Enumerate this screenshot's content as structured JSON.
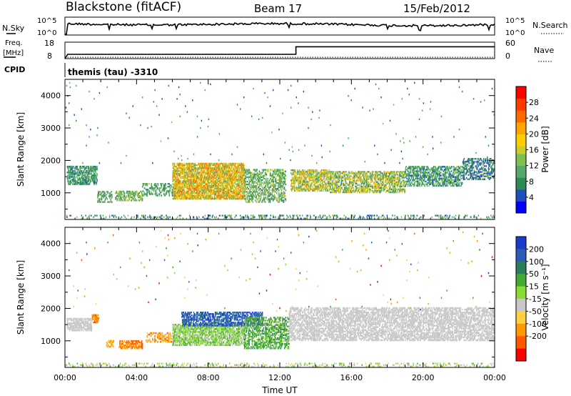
{
  "header": {
    "station": "Blackstone (fitACF)",
    "beam": "Beam 17",
    "date": "15/Feb/2012"
  },
  "top_panels": {
    "nsky_label": "N.Sky",
    "nsky_ticks": [
      "10^5",
      "10^0"
    ],
    "nsearch_label": "N.Search",
    "nsearch_ticks": [
      "10^5",
      "10^0"
    ],
    "freq_label_1": "Freq.",
    "freq_label_2": "[MHz]",
    "freq_ticks": [
      "18",
      "8"
    ],
    "nave_label": "Nave",
    "nave_ticks": [
      "60",
      "0"
    ],
    "cpid_label": "CPID",
    "cpid_text": "themis (tau) -3310",
    "freq_series": {
      "x_hours": [
        0,
        0.15,
        12.9,
        12.9,
        24
      ],
      "mhz": [
        8,
        10.6,
        10.6,
        15.2,
        15.2
      ]
    },
    "nave_series": {
      "x_hours": [
        0,
        24
      ],
      "count": [
        5,
        5
      ]
    }
  },
  "chart_data": [
    {
      "type": "heatmap",
      "name": "power",
      "ylabel": "Slant Range [km]",
      "yticks": [
        "4000",
        "3000",
        "2000",
        "1000"
      ],
      "ytick_values": [
        4000,
        3000,
        2000,
        1000
      ],
      "ylim": [
        180,
        4500
      ],
      "xlim": [
        0,
        24
      ],
      "colorbar_label": "Power [dB]",
      "colorbar_ticks": [
        "28",
        "24",
        "20",
        "16",
        "12",
        "8",
        "4"
      ],
      "colorbar_range": [
        0,
        32
      ],
      "colorbar_colors": [
        "#0000ff",
        "#1f4fbf",
        "#2e8b57",
        "#56a86b",
        "#7fbf4f",
        "#c8cc2e",
        "#ffcc00",
        "#ffa500",
        "#ff6a00",
        "#ff3b00",
        "#ff0000"
      ],
      "scatter_regions": [
        {
          "x": [
            0.1,
            1.8
          ],
          "y": [
            1250,
            1800
          ],
          "level": [
            5,
            12
          ],
          "density": 0.55
        },
        {
          "x": [
            1.8,
            2.6
          ],
          "y": [
            700,
            1050
          ],
          "level": [
            6,
            14
          ],
          "density": 0.4
        },
        {
          "x": [
            2.8,
            4.3
          ],
          "y": [
            750,
            1050
          ],
          "level": [
            7,
            16
          ],
          "density": 0.5
        },
        {
          "x": [
            4.3,
            6.0
          ],
          "y": [
            900,
            1300
          ],
          "level": [
            5,
            13
          ],
          "density": 0.35
        },
        {
          "x": [
            6.0,
            10.0
          ],
          "y": [
            800,
            1900
          ],
          "level": [
            10,
            26
          ],
          "density": 0.65
        },
        {
          "x": [
            10.0,
            12.3
          ],
          "y": [
            700,
            1700
          ],
          "level": [
            6,
            16
          ],
          "density": 0.4
        },
        {
          "x": [
            12.6,
            14.8
          ],
          "y": [
            1050,
            1700
          ],
          "level": [
            8,
            24
          ],
          "density": 0.55
        },
        {
          "x": [
            14.8,
            19.0
          ],
          "y": [
            1000,
            1650
          ],
          "level": [
            6,
            22
          ],
          "density": 0.5
        },
        {
          "x": [
            19.0,
            22.2
          ],
          "y": [
            1200,
            1800
          ],
          "level": [
            4,
            14
          ],
          "density": 0.45
        },
        {
          "x": [
            22.2,
            24.0
          ],
          "y": [
            1400,
            2050
          ],
          "level": [
            3,
            10
          ],
          "density": 0.35
        },
        {
          "x": [
            0.0,
            24.0
          ],
          "y": [
            190,
            300
          ],
          "level": [
            3,
            14
          ],
          "density": 0.18
        },
        {
          "x": [
            0.0,
            24.0
          ],
          "y": [
            1900,
            4400
          ],
          "level": [
            3,
            12
          ],
          "density": 0.004
        }
      ]
    },
    {
      "type": "heatmap",
      "name": "velocity",
      "ylabel": "Slant Range [km]",
      "yticks": [
        "4000",
        "3000",
        "2000",
        "1000"
      ],
      "ytick_values": [
        4000,
        3000,
        2000,
        1000
      ],
      "ylim": [
        180,
        4500
      ],
      "xlim": [
        0,
        24
      ],
      "xticks": [
        "00:00",
        "04:00",
        "08:00",
        "12:00",
        "16:00",
        "20:00",
        "00:00"
      ],
      "xtick_values": [
        0,
        4,
        8,
        12,
        16,
        20,
        24
      ],
      "xlabel": "Time UT",
      "colorbar_label": "Velocity [m s⁻¹]",
      "colorbar_ticks": [
        "200",
        "100",
        "50",
        "15",
        "-15",
        "-50",
        "-100",
        "-200"
      ],
      "colorbar_bins": [
        "#1a3cc8",
        "#2b5cb8",
        "#2e7d5a",
        "#44aa33",
        "#88dd33",
        "#c8c8c8",
        "#ffd040",
        "#ff9a00",
        "#ff5a00",
        "#ff0000"
      ],
      "scatter_regions": [
        {
          "x": [
            0.1,
            1.5
          ],
          "y": [
            1300,
            1700
          ],
          "level": [
            5,
            5
          ],
          "density": 0.6
        },
        {
          "x": [
            1.5,
            1.9
          ],
          "y": [
            1550,
            1800
          ],
          "level": [
            7,
            8
          ],
          "density": 0.6
        },
        {
          "x": [
            2.3,
            2.7
          ],
          "y": [
            800,
            1000
          ],
          "level": [
            6,
            7
          ],
          "density": 0.5
        },
        {
          "x": [
            3.0,
            4.3
          ],
          "y": [
            750,
            1000
          ],
          "level": [
            7,
            8
          ],
          "density": 0.5
        },
        {
          "x": [
            4.5,
            6.0
          ],
          "y": [
            950,
            1250
          ],
          "level": [
            6,
            8
          ],
          "density": 0.35
        },
        {
          "x": [
            6.0,
            10.0
          ],
          "y": [
            850,
            1500
          ],
          "level": [
            3,
            5
          ],
          "density": 0.6
        },
        {
          "x": [
            6.5,
            11.0
          ],
          "y": [
            1450,
            1900
          ],
          "level": [
            0,
            2
          ],
          "density": 0.5
        },
        {
          "x": [
            10.0,
            12.5
          ],
          "y": [
            750,
            1700
          ],
          "level": [
            2,
            4
          ],
          "density": 0.4
        },
        {
          "x": [
            12.5,
            24.0
          ],
          "y": [
            1000,
            2000
          ],
          "level": [
            5,
            5
          ],
          "density": 0.5
        },
        {
          "x": [
            0.0,
            24.0
          ],
          "y": [
            190,
            300
          ],
          "level": [
            3,
            6
          ],
          "density": 0.18
        },
        {
          "x": [
            0.0,
            24.0
          ],
          "y": [
            1900,
            4400
          ],
          "level": [
            0,
            9
          ],
          "density": 0.004
        }
      ]
    }
  ]
}
